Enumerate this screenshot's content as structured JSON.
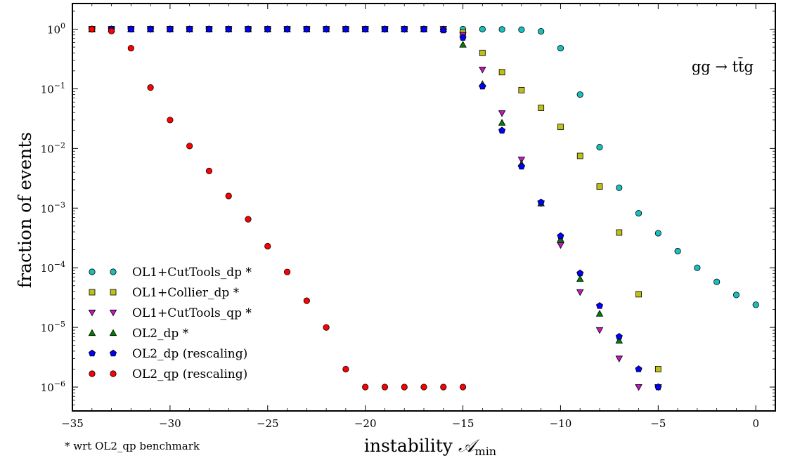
{
  "chart_data": {
    "type": "scatter",
    "title": "",
    "xlabel_main": "instability ",
    "xlabel_symbol": "𝒜",
    "xlabel_sub": "min",
    "ylabel": "fraction of events",
    "annotation": "gg → tt̄g",
    "footnote": "* wrt OL2_qp benchmark",
    "xlim": [
      -35,
      1
    ],
    "ylim_log10": [
      -6.4,
      0.43
    ],
    "yscale": "log",
    "grid": false,
    "legend_position": "lower-left",
    "x_ticks": [
      -35,
      -30,
      -25,
      -20,
      -15,
      -10,
      -5,
      0
    ],
    "x_tick_labels": [
      "−35",
      "−30",
      "−25",
      "−20",
      "−15",
      "−10",
      "−5",
      "0"
    ],
    "y_ticks_log10": [
      0,
      -1,
      -2,
      -3,
      -4,
      -5,
      -6
    ],
    "y_tick_labels": [
      {
        "base": "10",
        "exp": "0"
      },
      {
        "base": "10",
        "exp": "−1"
      },
      {
        "base": "10",
        "exp": "−2"
      },
      {
        "base": "10",
        "exp": "−3"
      },
      {
        "base": "10",
        "exp": "−4"
      },
      {
        "base": "10",
        "exp": "−5"
      },
      {
        "base": "10",
        "exp": "−6"
      }
    ],
    "series": [
      {
        "name": "OL1+CutTools_dp *",
        "marker": "circle",
        "color": "#19bfbf",
        "points": [
          [
            -34,
            1.0
          ],
          [
            -33,
            1.0
          ],
          [
            -32,
            1.0
          ],
          [
            -31,
            1.0
          ],
          [
            -30,
            1.0
          ],
          [
            -29,
            1.0
          ],
          [
            -28,
            1.0
          ],
          [
            -27,
            1.0
          ],
          [
            -26,
            1.0
          ],
          [
            -25,
            1.0
          ],
          [
            -24,
            1.0
          ],
          [
            -23,
            1.0
          ],
          [
            -22,
            1.0
          ],
          [
            -21,
            1.0
          ],
          [
            -20,
            1.0
          ],
          [
            -19,
            1.0
          ],
          [
            -18,
            1.0
          ],
          [
            -17,
            1.0
          ],
          [
            -16,
            1.0
          ],
          [
            -15,
            1.0
          ],
          [
            -14,
            1.0
          ],
          [
            -13,
            0.99
          ],
          [
            -12,
            0.98
          ],
          [
            -11,
            0.92
          ],
          [
            -10,
            0.48
          ],
          [
            -9,
            0.08
          ],
          [
            -8,
            0.0105
          ],
          [
            -7,
            0.0022
          ],
          [
            -6,
            0.00082
          ],
          [
            -5,
            0.00038
          ],
          [
            -4,
            0.00019
          ],
          [
            -3,
            0.0001
          ],
          [
            -2,
            5.8e-05
          ],
          [
            -1,
            3.5e-05
          ],
          [
            0,
            2.4e-05
          ]
        ]
      },
      {
        "name": "OL1+Collier_dp *",
        "marker": "square",
        "color": "#bfbf19",
        "points": [
          [
            -34,
            1.0
          ],
          [
            -33,
            1.0
          ],
          [
            -32,
            1.0
          ],
          [
            -31,
            1.0
          ],
          [
            -30,
            1.0
          ],
          [
            -29,
            1.0
          ],
          [
            -28,
            1.0
          ],
          [
            -27,
            1.0
          ],
          [
            -26,
            1.0
          ],
          [
            -25,
            1.0
          ],
          [
            -24,
            1.0
          ],
          [
            -23,
            1.0
          ],
          [
            -22,
            1.0
          ],
          [
            -21,
            1.0
          ],
          [
            -20,
            1.0
          ],
          [
            -19,
            1.0
          ],
          [
            -18,
            1.0
          ],
          [
            -17,
            1.0
          ],
          [
            -16,
            1.0
          ],
          [
            -15,
            0.88
          ],
          [
            -14,
            0.4
          ],
          [
            -13,
            0.19
          ],
          [
            -12,
            0.095
          ],
          [
            -11,
            0.048
          ],
          [
            -10,
            0.023
          ],
          [
            -9,
            0.0075
          ],
          [
            -8,
            0.0023
          ],
          [
            -7,
            0.00039
          ],
          [
            -6,
            3.6e-05
          ],
          [
            -5,
            2e-06
          ]
        ]
      },
      {
        "name": "OL1+CutTools_qp *",
        "marker": "triangle-down",
        "color": "#bf19bf",
        "points": [
          [
            -34,
            1.0
          ],
          [
            -33,
            1.0
          ],
          [
            -32,
            1.0
          ],
          [
            -31,
            1.0
          ],
          [
            -30,
            1.0
          ],
          [
            -29,
            1.0
          ],
          [
            -28,
            1.0
          ],
          [
            -27,
            1.0
          ],
          [
            -26,
            1.0
          ],
          [
            -25,
            1.0
          ],
          [
            -24,
            1.0
          ],
          [
            -23,
            1.0
          ],
          [
            -22,
            1.0
          ],
          [
            -21,
            1.0
          ],
          [
            -20,
            1.0
          ],
          [
            -19,
            1.0
          ],
          [
            -18,
            1.0
          ],
          [
            -17,
            1.0
          ],
          [
            -16,
            1.0
          ],
          [
            -15,
            0.8
          ],
          [
            -14,
            0.21
          ],
          [
            -13,
            0.039
          ],
          [
            -12,
            0.0065
          ],
          [
            -11,
            0.0012
          ],
          [
            -10,
            0.00024
          ],
          [
            -9,
            3.9e-05
          ],
          [
            -8,
            9e-06
          ],
          [
            -7,
            3e-06
          ],
          [
            -6,
            1e-06
          ],
          [
            -5,
            1e-06
          ]
        ]
      },
      {
        "name": "OL2_dp *",
        "marker": "triangle-up",
        "color": "#008000",
        "points": [
          [
            -34,
            1.0
          ],
          [
            -33,
            1.0
          ],
          [
            -32,
            1.0
          ],
          [
            -31,
            1.0
          ],
          [
            -30,
            1.0
          ],
          [
            -29,
            1.0
          ],
          [
            -28,
            1.0
          ],
          [
            -27,
            1.0
          ],
          [
            -26,
            1.0
          ],
          [
            -25,
            1.0
          ],
          [
            -24,
            1.0
          ],
          [
            -23,
            1.0
          ],
          [
            -22,
            1.0
          ],
          [
            -21,
            1.0
          ],
          [
            -20,
            1.0
          ],
          [
            -19,
            1.0
          ],
          [
            -18,
            1.0
          ],
          [
            -17,
            1.0
          ],
          [
            -16,
            1.0
          ],
          [
            -15,
            0.55
          ],
          [
            -14,
            0.12
          ],
          [
            -13,
            0.027
          ],
          [
            -12,
            0.0055
          ],
          [
            -11,
            0.0012
          ],
          [
            -10,
            0.0003
          ],
          [
            -9,
            6.5e-05
          ],
          [
            -8,
            1.7e-05
          ],
          [
            -7,
            6e-06
          ]
        ]
      },
      {
        "name": "OL2_dp (rescaling)",
        "marker": "pentagon",
        "color": "#0000ff",
        "points": [
          [
            -34,
            1.0
          ],
          [
            -33,
            1.0
          ],
          [
            -32,
            1.0
          ],
          [
            -31,
            1.0
          ],
          [
            -30,
            1.0
          ],
          [
            -29,
            1.0
          ],
          [
            -28,
            1.0
          ],
          [
            -27,
            1.0
          ],
          [
            -26,
            1.0
          ],
          [
            -25,
            1.0
          ],
          [
            -24,
            1.0
          ],
          [
            -23,
            1.0
          ],
          [
            -22,
            1.0
          ],
          [
            -21,
            1.0
          ],
          [
            -20,
            1.0
          ],
          [
            -19,
            1.0
          ],
          [
            -18,
            1.0
          ],
          [
            -17,
            1.0
          ],
          [
            -16,
            0.96
          ],
          [
            -15,
            0.72
          ],
          [
            -14,
            0.11
          ],
          [
            -13,
            0.02
          ],
          [
            -12,
            0.005
          ],
          [
            -11,
            0.00125
          ],
          [
            -10,
            0.00034
          ],
          [
            -9,
            8.1e-05
          ],
          [
            -8,
            2.3e-05
          ],
          [
            -7,
            7e-06
          ],
          [
            -6,
            2e-06
          ],
          [
            -5,
            1e-06
          ]
        ]
      },
      {
        "name": "OL2_qp (rescaling)",
        "marker": "circle",
        "color": "#ff0000",
        "points": [
          [
            -34,
            1.0
          ],
          [
            -33,
            0.93
          ],
          [
            -32,
            0.48
          ],
          [
            -31,
            0.105
          ],
          [
            -30,
            0.03
          ],
          [
            -29,
            0.011
          ],
          [
            -28,
            0.0042
          ],
          [
            -27,
            0.0016
          ],
          [
            -26,
            0.00065
          ],
          [
            -25,
            0.00023
          ],
          [
            -24,
            8.5e-05
          ],
          [
            -23,
            2.8e-05
          ],
          [
            -22,
            1e-05
          ],
          [
            -21,
            2e-06
          ],
          [
            -20,
            1e-06
          ],
          [
            -19,
            1e-06
          ],
          [
            -18,
            1e-06
          ],
          [
            -17,
            1e-06
          ],
          [
            -16,
            1e-06
          ],
          [
            -15,
            1e-06
          ]
        ]
      }
    ]
  }
}
